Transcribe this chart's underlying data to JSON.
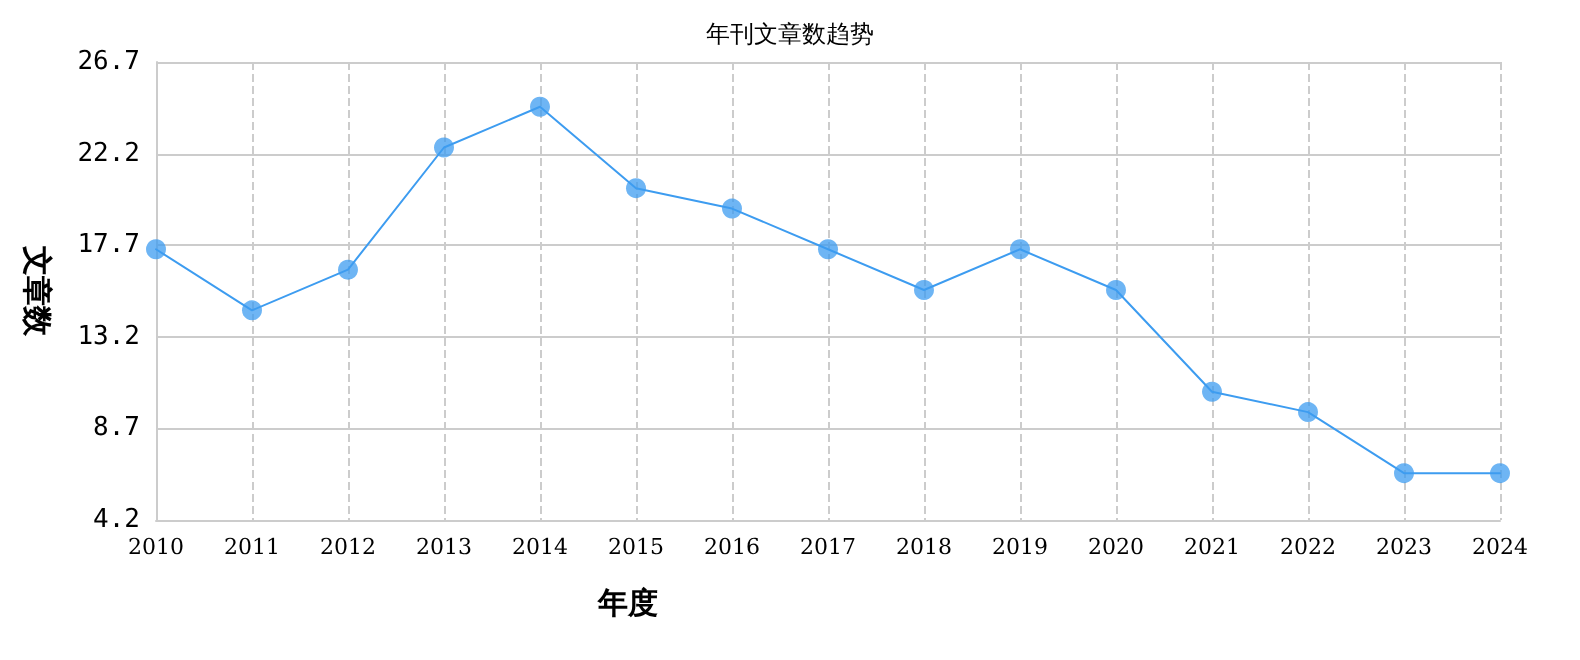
{
  "chart_data": {
    "type": "line",
    "title": "年刊文章数趋势",
    "xlabel": "年度",
    "ylabel": "文章数",
    "categories": [
      "2010",
      "2011",
      "2012",
      "2013",
      "2014",
      "2015",
      "2016",
      "2017",
      "2018",
      "2019",
      "2020",
      "2021",
      "2022",
      "2023",
      "2024"
    ],
    "series": [
      {
        "color": "#3d9cf0",
        "values": [
          17.5,
          14.5,
          16.5,
          22.5,
          24.5,
          20.5,
          19.5,
          17.5,
          15.5,
          17.5,
          15.5,
          10.5,
          9.5,
          6.5,
          6.5
        ]
      }
    ],
    "ylim": [
      4.2,
      26.7
    ],
    "yticks": [
      4.2,
      8.7,
      13.2,
      17.7,
      22.2,
      26.7
    ],
    "grid": true,
    "marker": "circle",
    "line_style": "solid"
  }
}
